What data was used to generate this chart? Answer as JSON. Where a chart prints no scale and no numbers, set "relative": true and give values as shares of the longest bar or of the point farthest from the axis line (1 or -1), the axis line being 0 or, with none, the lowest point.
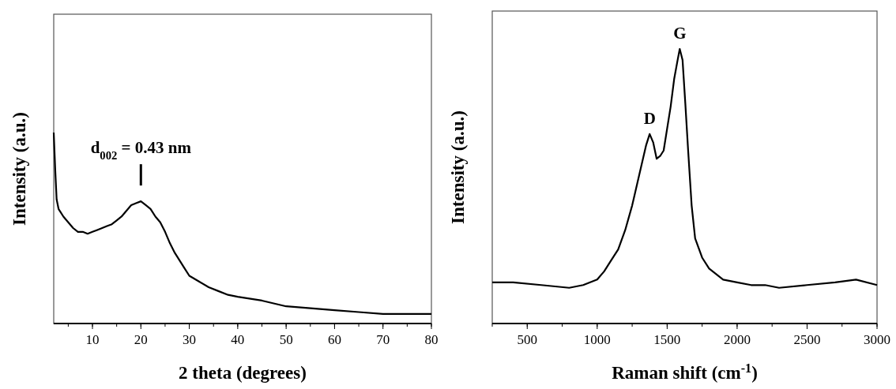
{
  "chart_data": [
    {
      "type": "line",
      "relative": true,
      "xlabel": "2 theta (degrees)",
      "ylabel": "Intensity (a.u.)",
      "xlim": [
        2,
        80
      ],
      "xticks": [
        10,
        20,
        30,
        40,
        50,
        60,
        70,
        80
      ],
      "marker": "none",
      "line_style": "solid",
      "grid": false,
      "annotations": [
        {
          "text": "d$_{002}$ = 0.43 nm",
          "x": 20,
          "y": 0.64
        }
      ],
      "series": [
        {
          "color": "#000000",
          "x": [
            2,
            2.3,
            2.6,
            3,
            4,
            5,
            6,
            7,
            8,
            9,
            10,
            11,
            12,
            13,
            14,
            15,
            16,
            17,
            18,
            19,
            20,
            21,
            22,
            23,
            24,
            25,
            26,
            27,
            28,
            29,
            30,
            32,
            34,
            36,
            38,
            40,
            45,
            50,
            55,
            60,
            65,
            70,
            75,
            80
          ],
          "values": [
            1.0,
            0.81,
            0.65,
            0.6,
            0.56,
            0.53,
            0.5,
            0.48,
            0.48,
            0.47,
            0.48,
            0.49,
            0.5,
            0.51,
            0.52,
            0.54,
            0.56,
            0.59,
            0.62,
            0.63,
            0.64,
            0.62,
            0.6,
            0.56,
            0.53,
            0.48,
            0.42,
            0.37,
            0.33,
            0.29,
            0.25,
            0.22,
            0.19,
            0.17,
            0.15,
            0.14,
            0.12,
            0.09,
            0.08,
            0.07,
            0.06,
            0.05,
            0.05,
            0.05
          ]
        }
      ]
    },
    {
      "type": "line",
      "relative": true,
      "xlabel": "Raman shift (cm$^{-1}$)",
      "ylabel": "Intensity (a.u.)",
      "xlim": [
        250,
        3000
      ],
      "xticks": [
        500,
        1000,
        1500,
        2000,
        2500,
        3000
      ],
      "marker": "none",
      "line_style": "solid",
      "grid": false,
      "annotations": [
        {
          "text": "D",
          "x": 1375,
          "y": 0.69
        },
        {
          "text": "G",
          "x": 1590,
          "y": 1.0
        }
      ],
      "series": [
        {
          "color": "#000000",
          "x": [
            250,
            400,
            600,
            800,
            900,
            1000,
            1050,
            1100,
            1150,
            1200,
            1250,
            1300,
            1350,
            1375,
            1400,
            1425,
            1450,
            1475,
            1500,
            1525,
            1550,
            1575,
            1590,
            1610,
            1630,
            1650,
            1675,
            1700,
            1750,
            1800,
            1850,
            1900,
            2000,
            2100,
            2200,
            2300,
            2500,
            2700,
            2850,
            3000
          ],
          "values": [
            0.15,
            0.15,
            0.14,
            0.13,
            0.14,
            0.16,
            0.19,
            0.23,
            0.27,
            0.34,
            0.43,
            0.54,
            0.65,
            0.69,
            0.66,
            0.6,
            0.61,
            0.63,
            0.71,
            0.79,
            0.89,
            0.96,
            1.0,
            0.96,
            0.8,
            0.63,
            0.43,
            0.31,
            0.24,
            0.2,
            0.18,
            0.16,
            0.15,
            0.14,
            0.14,
            0.13,
            0.14,
            0.15,
            0.16,
            0.14
          ]
        }
      ]
    }
  ]
}
